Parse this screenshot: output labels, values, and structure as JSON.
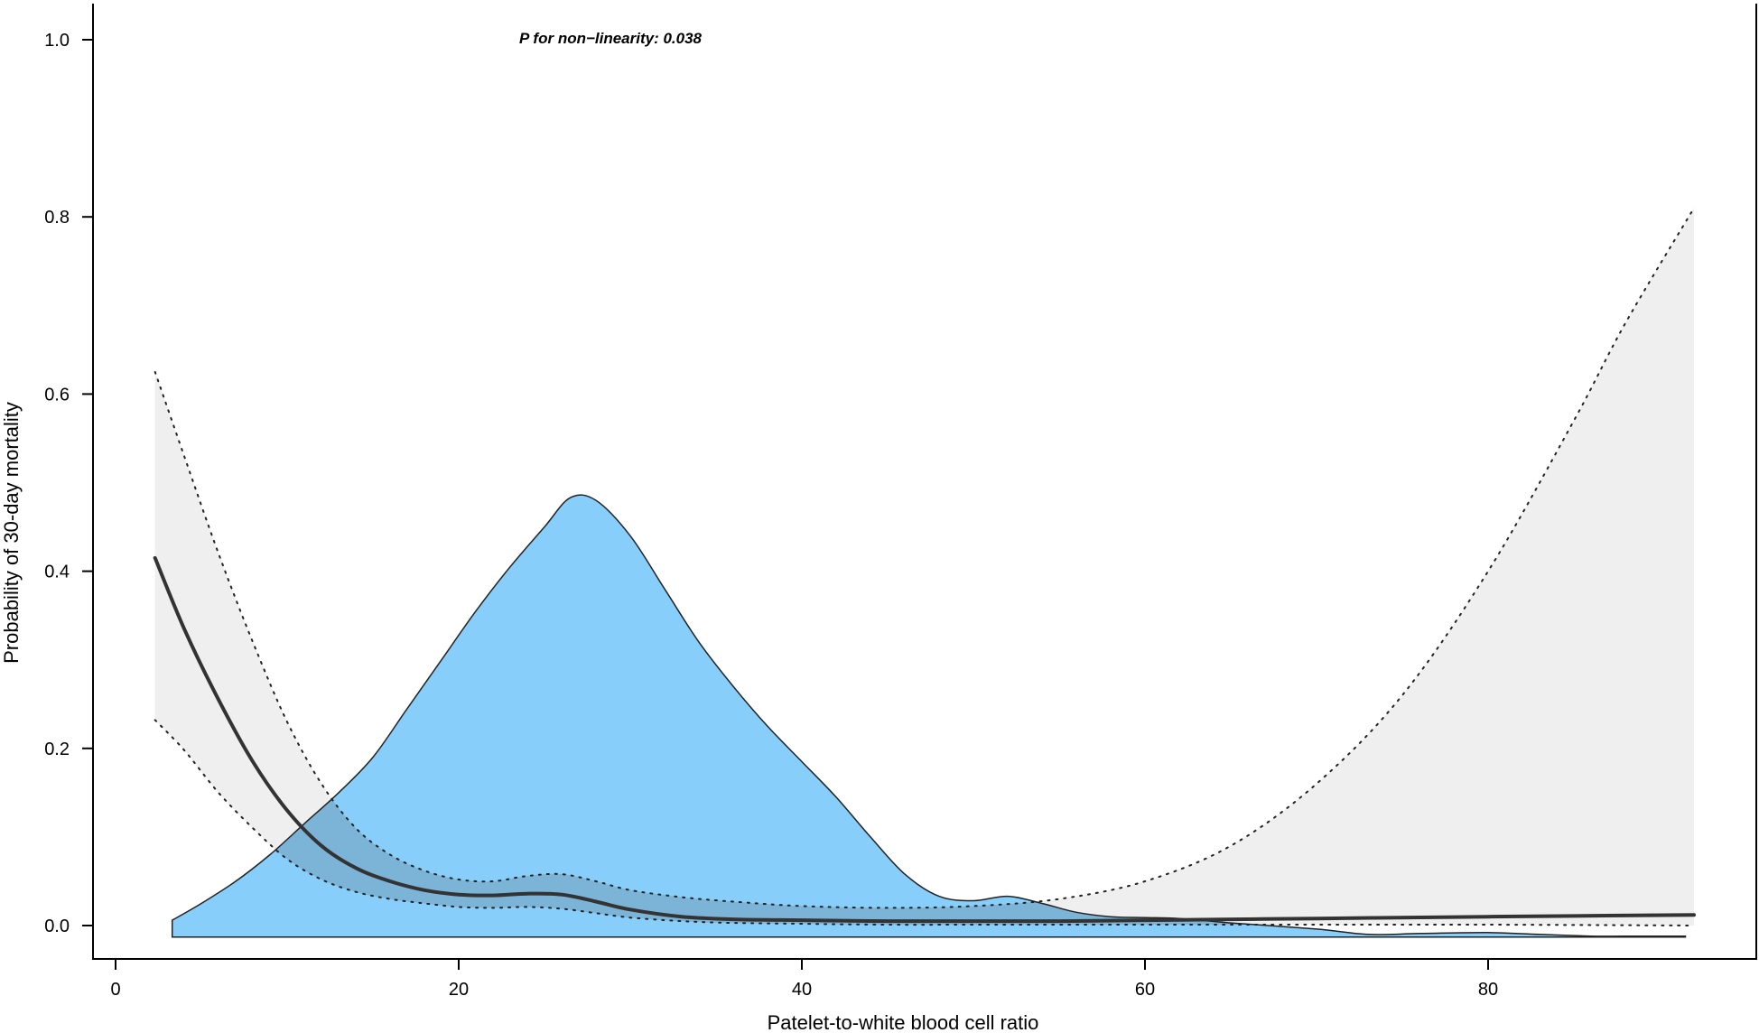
{
  "chart_data": {
    "type": "line",
    "title": "",
    "xlabel": "Patelet-to-white blood cell ratio",
    "ylabel": "Probability of 30-day mortality",
    "annotation": "P for non−linearity: 0.038",
    "xlim": [
      -2,
      95
    ],
    "ylim": [
      -0.04,
      1.04
    ],
    "x_ticks": [
      0,
      20,
      40,
      60,
      80
    ],
    "y_ticks": [
      0.0,
      0.2,
      0.4,
      0.6,
      0.8,
      1.0
    ],
    "x_tick_labels": [
      "0",
      "20",
      "40",
      "60",
      "80"
    ],
    "y_tick_labels": [
      "0.0",
      "0.2",
      "0.4",
      "0.6",
      "0.8",
      "1.0"
    ],
    "grid": false,
    "legend": "none",
    "colors": {
      "density_fill": "#87CEFA",
      "ci_fill": "#EFEFEF",
      "line": "#333333",
      "outline": "#222222"
    },
    "series": [
      {
        "role": "estimate",
        "x": [
          2.3,
          4,
          6,
          8,
          10,
          12,
          14,
          16,
          18,
          20,
          22,
          24,
          26,
          28,
          30,
          33,
          36,
          40,
          45,
          50,
          55,
          60,
          70,
          80,
          92
        ],
        "y": [
          0.415,
          0.335,
          0.255,
          0.185,
          0.13,
          0.09,
          0.065,
          0.05,
          0.04,
          0.035,
          0.034,
          0.036,
          0.035,
          0.027,
          0.018,
          0.01,
          0.007,
          0.006,
          0.005,
          0.005,
          0.005,
          0.006,
          0.008,
          0.01,
          0.012
        ]
      },
      {
        "role": "upper-ci",
        "x": [
          2.3,
          4,
          6,
          8,
          10,
          12,
          14,
          16,
          18,
          20,
          22,
          24,
          26,
          28,
          30,
          33,
          36,
          40,
          45,
          50,
          55,
          60,
          65,
          70,
          75,
          80,
          85,
          88,
          92
        ],
        "y": [
          0.625,
          0.53,
          0.42,
          0.32,
          0.23,
          0.16,
          0.11,
          0.08,
          0.062,
          0.052,
          0.05,
          0.056,
          0.058,
          0.05,
          0.04,
          0.032,
          0.027,
          0.022,
          0.02,
          0.022,
          0.03,
          0.05,
          0.09,
          0.16,
          0.26,
          0.4,
          0.57,
          0.68,
          0.81
        ]
      },
      {
        "role": "lower-ci",
        "x": [
          2.3,
          4,
          6,
          8,
          10,
          12,
          14,
          16,
          18,
          20,
          22,
          24,
          26,
          28,
          30,
          33,
          36,
          40,
          45,
          50,
          55,
          60,
          70,
          80,
          92
        ],
        "y": [
          0.232,
          0.198,
          0.15,
          0.11,
          0.075,
          0.052,
          0.038,
          0.03,
          0.025,
          0.021,
          0.02,
          0.021,
          0.019,
          0.014,
          0.009,
          0.005,
          0.003,
          0.002,
          0.001,
          0.001,
          0.001,
          0.001,
          0.001,
          0.001,
          0.0
        ]
      },
      {
        "role": "density",
        "baseline": -0.013,
        "x": [
          3.3,
          5,
          7,
          9,
          11,
          13,
          15,
          17,
          19,
          21,
          23,
          25,
          26.5,
          28,
          30,
          32,
          34,
          36,
          38,
          40,
          42,
          44,
          46,
          48,
          50,
          52,
          54,
          56,
          58,
          60,
          62,
          65,
          70,
          73,
          76,
          80,
          83,
          86,
          88,
          91.5
        ],
        "y": [
          0.006,
          0.025,
          0.05,
          0.08,
          0.115,
          0.15,
          0.19,
          0.245,
          0.3,
          0.355,
          0.405,
          0.45,
          0.483,
          0.48,
          0.44,
          0.38,
          0.32,
          0.27,
          0.225,
          0.185,
          0.145,
          0.1,
          0.058,
          0.033,
          0.028,
          0.033,
          0.025,
          0.015,
          0.01,
          0.009,
          0.008,
          0.003,
          -0.004,
          -0.01,
          -0.009,
          -0.008,
          -0.01,
          -0.012,
          -0.012,
          -0.012
        ]
      }
    ]
  }
}
